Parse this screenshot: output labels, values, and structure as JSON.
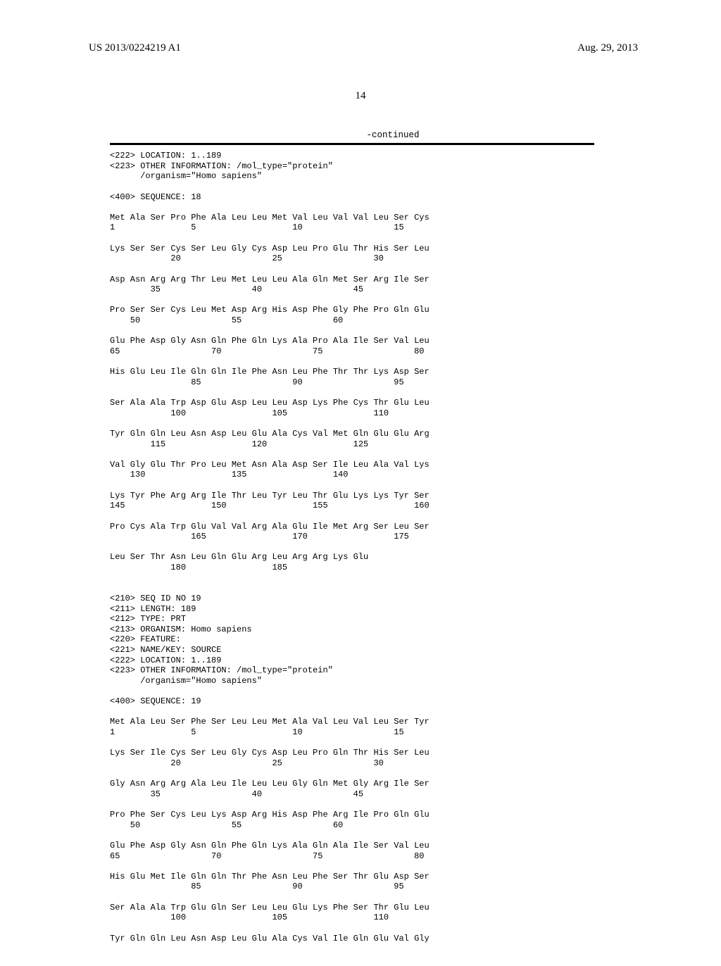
{
  "patent_id": "US 2013/0224219 A1",
  "pub_date": "Aug. 29, 2013",
  "page_number": "14",
  "continued": "-continued",
  "listing_text": "<222> LOCATION: 1..189\n<223> OTHER INFORMATION: /mol_type=\"protein\"\n      /organism=\"Homo sapiens\"\n\n<400> SEQUENCE: 18\n\nMet Ala Ser Pro Phe Ala Leu Leu Met Val Leu Val Val Leu Ser Cys\n1               5                   10                  15\n\nLys Ser Ser Cys Ser Leu Gly Cys Asp Leu Pro Glu Thr His Ser Leu\n            20                  25                  30\n\nAsp Asn Arg Arg Thr Leu Met Leu Leu Ala Gln Met Ser Arg Ile Ser\n        35                  40                  45\n\nPro Ser Ser Cys Leu Met Asp Arg His Asp Phe Gly Phe Pro Gln Glu\n    50                  55                  60\n\nGlu Phe Asp Gly Asn Gln Phe Gln Lys Ala Pro Ala Ile Ser Val Leu\n65                  70                  75                  80\n\nHis Glu Leu Ile Gln Gln Ile Phe Asn Leu Phe Thr Thr Lys Asp Ser\n                85                  90                  95\n\nSer Ala Ala Trp Asp Glu Asp Leu Leu Asp Lys Phe Cys Thr Glu Leu\n            100                 105                 110\n\nTyr Gln Gln Leu Asn Asp Leu Glu Ala Cys Val Met Gln Glu Glu Arg\n        115                 120                 125\n\nVal Gly Glu Thr Pro Leu Met Asn Ala Asp Ser Ile Leu Ala Val Lys\n    130                 135                 140\n\nLys Tyr Phe Arg Arg Ile Thr Leu Tyr Leu Thr Glu Lys Lys Tyr Ser\n145                 150                 155                 160\n\nPro Cys Ala Trp Glu Val Val Arg Ala Glu Ile Met Arg Ser Leu Ser\n                165                 170                 175\n\nLeu Ser Thr Asn Leu Gln Glu Arg Leu Arg Arg Lys Glu\n            180                 185\n\n\n<210> SEQ ID NO 19\n<211> LENGTH: 189\n<212> TYPE: PRT\n<213> ORGANISM: Homo sapiens\n<220> FEATURE:\n<221> NAME/KEY: SOURCE\n<222> LOCATION: 1..189\n<223> OTHER INFORMATION: /mol_type=\"protein\"\n      /organism=\"Homo sapiens\"\n\n<400> SEQUENCE: 19\n\nMet Ala Leu Ser Phe Ser Leu Leu Met Ala Val Leu Val Leu Ser Tyr\n1               5                   10                  15\n\nLys Ser Ile Cys Ser Leu Gly Cys Asp Leu Pro Gln Thr His Ser Leu\n            20                  25                  30\n\nGly Asn Arg Arg Ala Leu Ile Leu Leu Gly Gln Met Gly Arg Ile Ser\n        35                  40                  45\n\nPro Phe Ser Cys Leu Lys Asp Arg His Asp Phe Arg Ile Pro Gln Glu\n    50                  55                  60\n\nGlu Phe Asp Gly Asn Gln Phe Gln Lys Ala Gln Ala Ile Ser Val Leu\n65                  70                  75                  80\n\nHis Glu Met Ile Gln Gln Thr Phe Asn Leu Phe Ser Thr Glu Asp Ser\n                85                  90                  95\n\nSer Ala Ala Trp Glu Gln Ser Leu Leu Glu Lys Phe Ser Thr Glu Leu\n            100                 105                 110\n\nTyr Gln Gln Leu Asn Asp Leu Glu Ala Cys Val Ile Gln Glu Val Gly"
}
